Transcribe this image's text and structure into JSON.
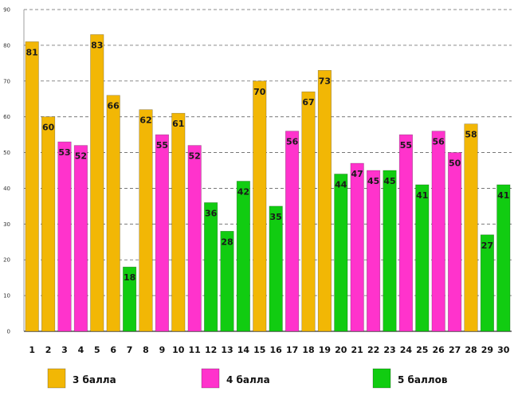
{
  "chart_data": {
    "type": "bar",
    "categories": [
      "1",
      "2",
      "3",
      "4",
      "5",
      "6",
      "7",
      "8",
      "9",
      "10",
      "11",
      "12",
      "13",
      "14",
      "15",
      "16",
      "17",
      "18",
      "19",
      "20",
      "21",
      "22",
      "23",
      "24",
      "25",
      "26",
      "27",
      "28",
      "29",
      "30"
    ],
    "values": [
      81,
      60,
      53,
      52,
      83,
      66,
      18,
      62,
      55,
      61,
      52,
      36,
      28,
      42,
      70,
      35,
      56,
      67,
      73,
      44,
      47,
      45,
      45,
      55,
      41,
      56,
      50,
      58,
      27,
      41
    ],
    "bar_groups": [
      "3 балла",
      "3 балла",
      "4 балла",
      "4 балла",
      "3 балла",
      "3 балла",
      "5 баллов",
      "3 балла",
      "4 балла",
      "3 балла",
      "4 балла",
      "5 баллов",
      "5 баллов",
      "5 баллов",
      "3 балла",
      "5 баллов",
      "4 балла",
      "3 балла",
      "3 балла",
      "5 баллов",
      "4 балла",
      "4 балла",
      "5 баллов",
      "4 балла",
      "5 баллов",
      "4 балла",
      "4 балла",
      "3 балла",
      "5 баллов",
      "5 баллов"
    ],
    "legend": [
      {
        "name": "3 балла",
        "color": "#F2B705"
      },
      {
        "name": "4 балла",
        "color": "#FF33CC"
      },
      {
        "name": "5 баллов",
        "color": "#11CC11"
      }
    ],
    "ylim": [
      0,
      90
    ],
    "yticks": [
      0,
      10,
      20,
      30,
      40,
      50,
      60,
      70,
      80,
      90
    ],
    "grid": true,
    "legend_position": "bottom"
  }
}
